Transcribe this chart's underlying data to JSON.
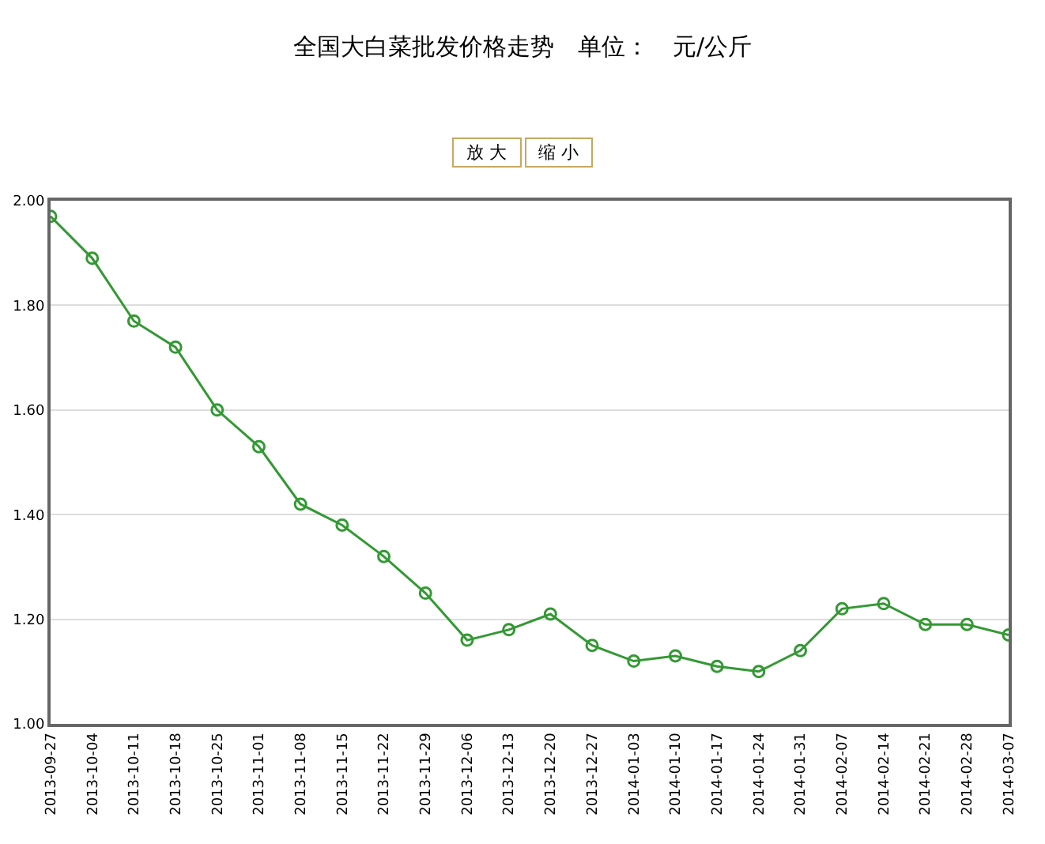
{
  "chart_data": {
    "type": "line",
    "title": "全国大白菜批发价格走势　单位：　元/公斤",
    "categories": [
      "2013-09-27",
      "2013-10-04",
      "2013-10-11",
      "2013-10-18",
      "2013-10-25",
      "2013-11-01",
      "2013-11-08",
      "2013-11-15",
      "2013-11-22",
      "2013-11-29",
      "2013-12-06",
      "2013-12-13",
      "2013-12-20",
      "2013-12-27",
      "2014-01-03",
      "2014-01-10",
      "2014-01-17",
      "2014-01-24",
      "2014-01-31",
      "2014-02-07",
      "2014-02-14",
      "2014-02-21",
      "2014-02-28",
      "2014-03-07"
    ],
    "series": [
      {
        "color": "#339933",
        "values": [
          1.97,
          1.89,
          1.77,
          1.72,
          1.6,
          1.53,
          1.42,
          1.38,
          1.32,
          1.25,
          1.16,
          1.18,
          1.21,
          1.15,
          1.12,
          1.13,
          1.11,
          1.1,
          1.14,
          1.22,
          1.23,
          1.19,
          1.19,
          1.17
        ]
      }
    ],
    "ylim": [
      1.0,
      2.0
    ],
    "yticks": [
      {
        "value": 1.0,
        "label": "1.00"
      },
      {
        "value": 1.2,
        "label": "1.20"
      },
      {
        "value": 1.4,
        "label": "1.40"
      },
      {
        "value": 1.6,
        "label": "1.60"
      },
      {
        "value": 1.8,
        "label": "1.80"
      },
      {
        "value": 2.0,
        "label": "2.00"
      }
    ],
    "grid": "y",
    "marker": "circle",
    "line_style": "solid",
    "annotations": [
      "放 大",
      "缩 小"
    ]
  }
}
